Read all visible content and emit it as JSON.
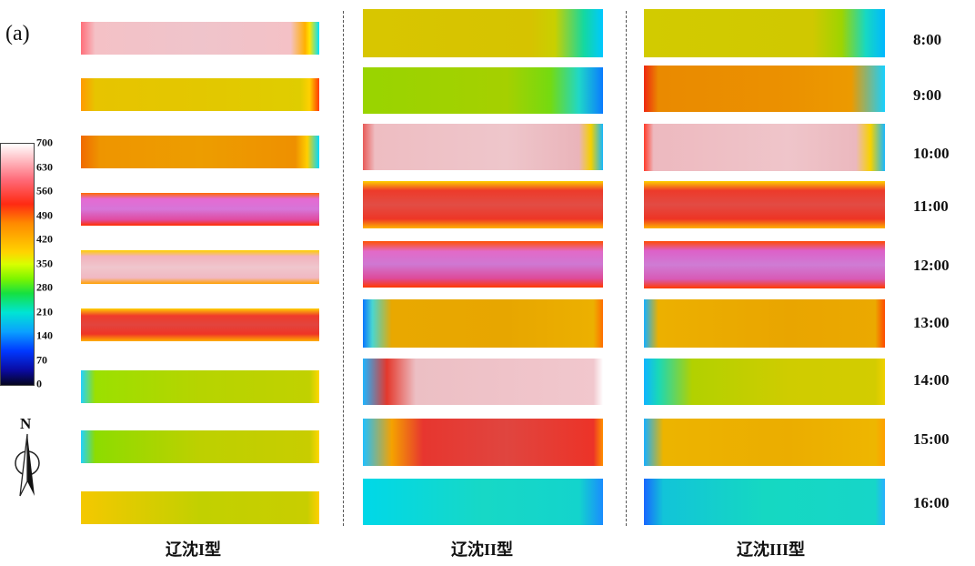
{
  "panel_label": "(a)",
  "legend": {
    "ticks": [
      "700",
      "630",
      "560",
      "490",
      "420",
      "350",
      "280",
      "210",
      "140",
      "70",
      "0"
    ]
  },
  "compass": {
    "label": "N"
  },
  "columns": [
    {
      "title": "辽沈I型"
    },
    {
      "title": "辽沈II型"
    },
    {
      "title": "辽沈III型"
    }
  ],
  "times": [
    "8:00",
    "9:00",
    "10:00",
    "11:00",
    "12:00",
    "13:00",
    "14:00",
    "15:00",
    "16:00"
  ]
}
